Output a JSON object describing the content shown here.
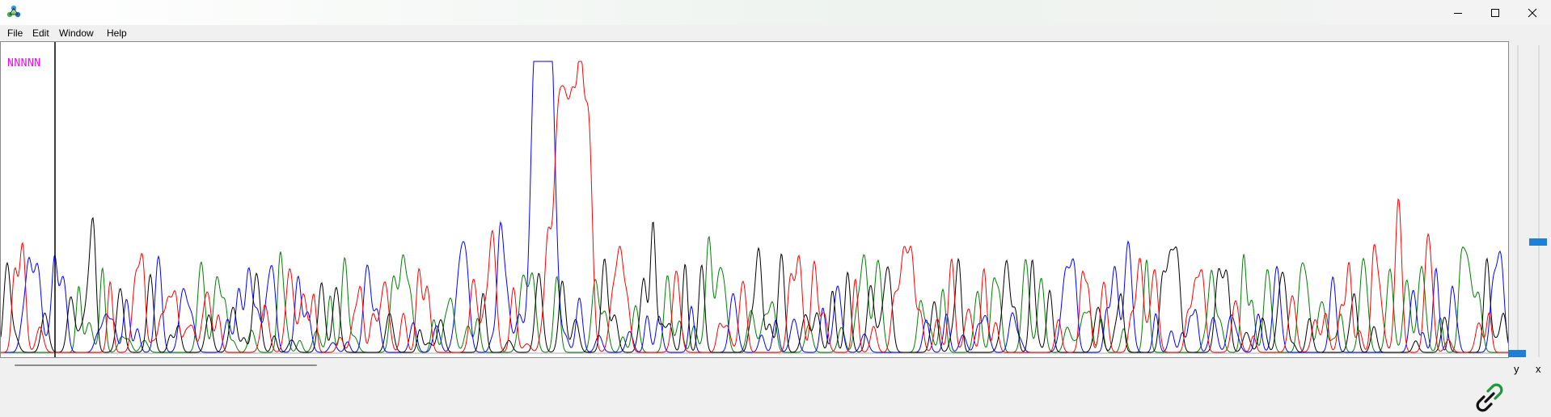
{
  "window": {
    "icon": "dna-molecule-icon",
    "controls": [
      "minimize-icon",
      "maximize-icon",
      "close-icon"
    ]
  },
  "menu": {
    "file": "File",
    "edit": "Edit",
    "window": "Window",
    "help": "Help"
  },
  "chromatogram": {
    "base_calls": "NNNNN",
    "base_call_color": "#ff00ff",
    "trace_colors": {
      "A": "#008000",
      "C": "#0000ff",
      "G": "#000000",
      "T": "#ff0000"
    }
  },
  "sliders": {
    "y_label": "y",
    "x_label": "x",
    "y_level": 0.0,
    "x_level": 0.12
  },
  "status": {
    "link_icon": "link-chain-icon"
  }
}
